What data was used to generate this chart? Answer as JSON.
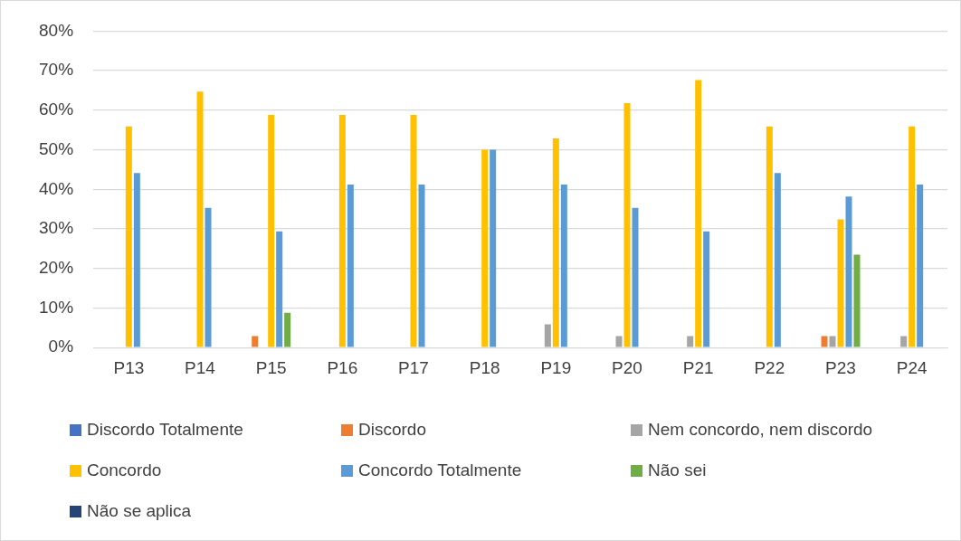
{
  "chart_data": {
    "type": "bar",
    "categories": [
      "P13",
      "P14",
      "P15",
      "P16",
      "P17",
      "P18",
      "P19",
      "P20",
      "P21",
      "P22",
      "P23",
      "P24"
    ],
    "series": [
      {
        "name": "Discordo Totalmente",
        "color": "#4472c4",
        "values": [
          0,
          0,
          0,
          0,
          0,
          0,
          0,
          0,
          0,
          0,
          0,
          0
        ]
      },
      {
        "name": "Discordo",
        "color": "#ed7d31",
        "values": [
          0,
          0,
          2.9,
          0,
          0,
          0,
          0,
          0,
          0,
          0,
          2.9,
          0
        ]
      },
      {
        "name": "Nem concordo, nem discordo",
        "color": "#a5a5a5",
        "values": [
          0,
          0,
          0,
          0,
          0,
          0,
          5.9,
          2.9,
          2.9,
          0,
          2.9,
          2.9
        ]
      },
      {
        "name": "Concordo",
        "color": "#ffc000",
        "values": [
          55.9,
          64.7,
          58.8,
          58.8,
          58.8,
          50,
          52.9,
          61.8,
          67.6,
          55.9,
          32.4,
          55.9
        ]
      },
      {
        "name": "Concordo Totalmente",
        "color": "#5b9bd5",
        "values": [
          44.1,
          35.3,
          29.4,
          41.2,
          41.2,
          50,
          41.2,
          35.3,
          29.4,
          44.1,
          38.2,
          41.2
        ]
      },
      {
        "name": "Não sei",
        "color": "#70ad47",
        "values": [
          0,
          0,
          8.8,
          0,
          0,
          0,
          0,
          0,
          0,
          0,
          23.5,
          0
        ]
      },
      {
        "name": "Não se aplica",
        "color": "#264478",
        "values": [
          0,
          0,
          0,
          0,
          0,
          0,
          0,
          0,
          0,
          0,
          0,
          0
        ]
      }
    ],
    "ylim": [
      0,
      80
    ],
    "yticks": [
      {
        "value": 0,
        "label": "0%"
      },
      {
        "value": 10,
        "label": "10%"
      },
      {
        "value": 20,
        "label": "20%"
      },
      {
        "value": 30,
        "label": "30%"
      },
      {
        "value": 40,
        "label": "40%"
      },
      {
        "value": 50,
        "label": "50%"
      },
      {
        "value": 60,
        "label": "60%"
      },
      {
        "value": 70,
        "label": "70%"
      },
      {
        "value": 80,
        "label": "80%"
      }
    ],
    "grid": "y",
    "legend": "bottom"
  }
}
